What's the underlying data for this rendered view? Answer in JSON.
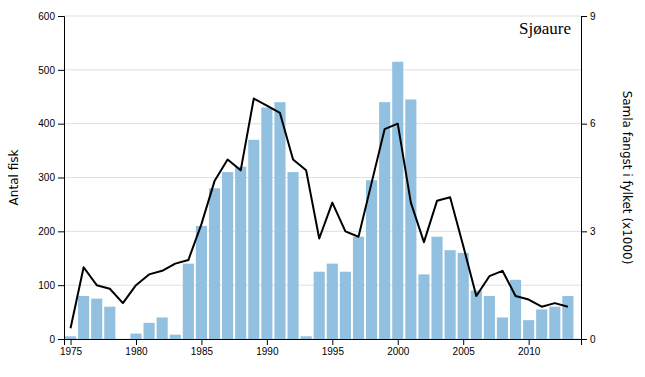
{
  "chart_data": {
    "type": "bar",
    "title": "Sjøaure",
    "ylabel": "Antal fisk",
    "y2label": "Samla fangst i fylket (x1000)",
    "x": [
      1975,
      1976,
      1977,
      1978,
      1979,
      1980,
      1981,
      1982,
      1983,
      1984,
      1985,
      1986,
      1987,
      1988,
      1989,
      1990,
      1991,
      1992,
      1993,
      1994,
      1995,
      1996,
      1997,
      1998,
      1999,
      2000,
      2001,
      2002,
      2003,
      2004,
      2005,
      2006,
      2007,
      2008,
      2009,
      2010,
      2011,
      2012,
      2013
    ],
    "series": [
      {
        "type": "bar",
        "color": "#92c0e0",
        "values": [
          5,
          80,
          75,
          60,
          0,
          10,
          30,
          40,
          8,
          140,
          210,
          280,
          310,
          320,
          370,
          430,
          440,
          310,
          5,
          125,
          140,
          125,
          190,
          295,
          440,
          515,
          445,
          120,
          190,
          165,
          160,
          90,
          80,
          40,
          110,
          35,
          55,
          60,
          80
        ]
      },
      {
        "type": "line",
        "axis": "y2",
        "color": "#000000",
        "values": [
          0.3,
          2.0,
          1.5,
          1.4,
          1.0,
          1.5,
          1.8,
          1.9,
          2.1,
          2.2,
          3.2,
          4.4,
          5.0,
          4.7,
          6.7,
          6.5,
          6.3,
          5.0,
          4.7,
          2.8,
          3.8,
          3.0,
          2.85,
          4.35,
          5.85,
          6.0,
          3.8,
          2.7,
          3.85,
          3.95,
          2.6,
          1.2,
          1.75,
          1.9,
          1.2,
          1.1,
          0.9,
          1.0,
          0.9
        ]
      }
    ],
    "xlim": [
      1974.5,
      2014.0
    ],
    "xticks": [
      1975,
      1980,
      1985,
      1990,
      1995,
      2000,
      2005,
      2010
    ],
    "ylim": [
      0,
      600
    ],
    "yticks": [
      0,
      100,
      200,
      300,
      400,
      500,
      600
    ],
    "y2lim": [
      0,
      9
    ],
    "y2ticks": [
      0,
      3,
      6,
      9
    ],
    "grid": true
  }
}
